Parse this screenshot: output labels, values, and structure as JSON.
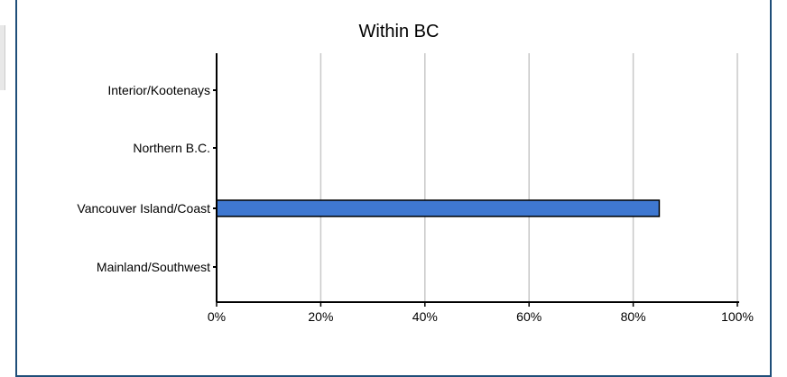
{
  "chart_data": {
    "type": "bar",
    "orientation": "horizontal",
    "title": "Within BC",
    "categories": [
      "Interior/Kootenays",
      "Northern B.C.",
      "Vancouver Island/Coast",
      "Mainland/Southwest"
    ],
    "values": [
      0,
      0,
      85,
      0
    ],
    "xlim": [
      0,
      100
    ],
    "x_ticks": [
      "0%",
      "20%",
      "40%",
      "60%",
      "80%",
      "100%"
    ],
    "grid": "vertical",
    "bar_color": "#3f78d1"
  }
}
